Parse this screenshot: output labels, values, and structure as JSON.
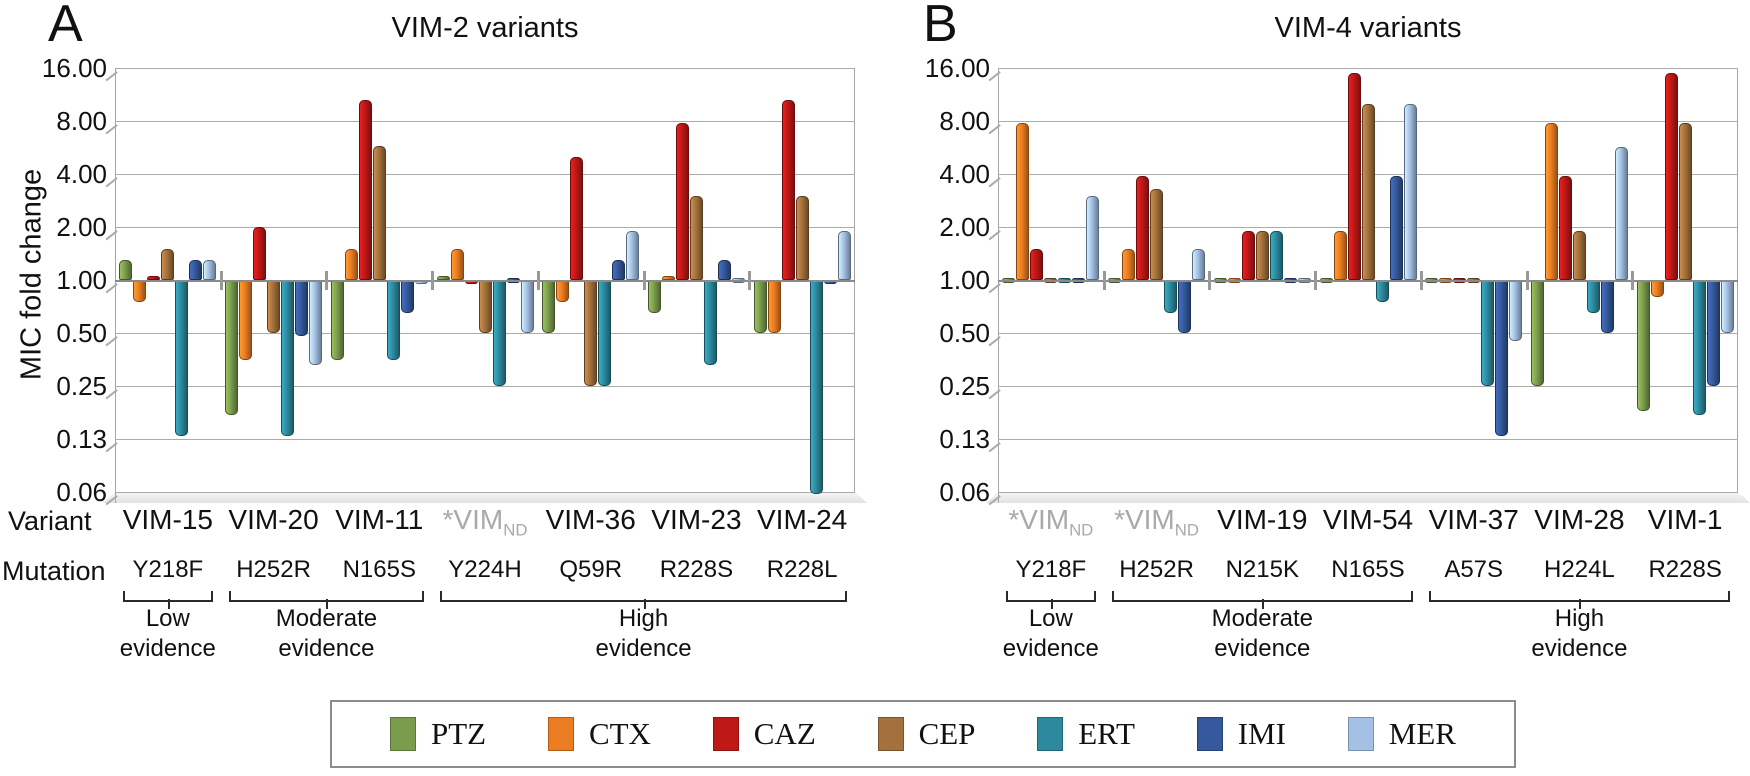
{
  "chart_data": [
    {
      "type": "bar",
      "panel_letter": "A",
      "title": "VIM-2 variants",
      "ylabel": "MIC fold change",
      "yscale": "log2",
      "ylim": [
        0.06,
        16
      ],
      "grid": true,
      "y_tick_labels": [
        "16.00",
        "8.00",
        "4.00",
        "2.00",
        "1.00",
        "0.50",
        "0.25",
        "0.13",
        "0.06"
      ],
      "axis_row_labels": {
        "variant": "Variant",
        "mutation": "Mutation"
      },
      "categories": [
        {
          "variant": "VIM-15",
          "sub": "",
          "nd": false,
          "mutation": "Y218F"
        },
        {
          "variant": "VIM-20",
          "sub": "",
          "nd": false,
          "mutation": "H252R"
        },
        {
          "variant": "VIM-11",
          "sub": "",
          "nd": false,
          "mutation": "N165S"
        },
        {
          "variant": "*VIM",
          "sub": "ND",
          "nd": true,
          "mutation": "Y224H"
        },
        {
          "variant": "VIM-36",
          "sub": "",
          "nd": false,
          "mutation": "Q59R"
        },
        {
          "variant": "VIM-23",
          "sub": "",
          "nd": false,
          "mutation": "R228S"
        },
        {
          "variant": "VIM-24",
          "sub": "",
          "nd": false,
          "mutation": "R228L"
        }
      ],
      "series": [
        {
          "name": "PTZ",
          "values": [
            1.3,
            0.17,
            0.35,
            1.05,
            0.5,
            0.65,
            0.5
          ]
        },
        {
          "name": "CTX",
          "values": [
            0.75,
            0.35,
            1.5,
            1.5,
            0.75,
            1.05,
            0.5
          ]
        },
        {
          "name": "CAZ",
          "values": [
            1.05,
            2.0,
            10.5,
            0.95,
            5.0,
            7.8,
            10.5
          ]
        },
        {
          "name": "CEP",
          "values": [
            1.5,
            0.5,
            5.8,
            0.5,
            0.25,
            3.0,
            3.0
          ]
        },
        {
          "name": "ERT",
          "values": [
            0.13,
            0.13,
            0.35,
            0.25,
            0.25,
            0.33,
            0.06
          ]
        },
        {
          "name": "IMI",
          "values": [
            1.3,
            0.48,
            0.65,
            0.97,
            1.3,
            1.3,
            0.95
          ]
        },
        {
          "name": "MER",
          "values": [
            1.3,
            0.33,
            0.95,
            0.5,
            1.9,
            0.97,
            1.9
          ]
        }
      ],
      "evidence_brackets": [
        {
          "label": [
            "Low",
            "evidence"
          ],
          "from": 0,
          "to": 0
        },
        {
          "label": [
            "Moderate",
            "evidence"
          ],
          "from": 1,
          "to": 2
        },
        {
          "label": [
            "High",
            "evidence"
          ],
          "from": 3,
          "to": 6
        }
      ]
    },
    {
      "type": "bar",
      "panel_letter": "B",
      "title": "VIM-4 variants",
      "yscale": "log2",
      "ylim": [
        0.06,
        16
      ],
      "grid": true,
      "y_tick_labels": [
        "16.00",
        "8.00",
        "4.00",
        "2.00",
        "1.00",
        "0.50",
        "0.25",
        "0.13",
        "0.06"
      ],
      "categories": [
        {
          "variant": "*VIM",
          "sub": "ND",
          "nd": true,
          "mutation": "Y218F"
        },
        {
          "variant": "*VIM",
          "sub": "ND",
          "nd": true,
          "mutation": "H252R"
        },
        {
          "variant": "VIM-19",
          "sub": "",
          "nd": false,
          "mutation": "N215K"
        },
        {
          "variant": "VIM-54",
          "sub": "",
          "nd": false,
          "mutation": "N165S"
        },
        {
          "variant": "VIM-37",
          "sub": "",
          "nd": false,
          "mutation": "A57S"
        },
        {
          "variant": "VIM-28",
          "sub": "",
          "nd": false,
          "mutation": "H224L"
        },
        {
          "variant": "VIM-1",
          "sub": "",
          "nd": false,
          "mutation": "R228S"
        }
      ],
      "series": [
        {
          "name": "PTZ",
          "values": [
            1.0,
            1.0,
            1.0,
            1.0,
            1.0,
            0.25,
            0.18
          ]
        },
        {
          "name": "CTX",
          "values": [
            7.8,
            1.5,
            1.0,
            1.9,
            1.0,
            7.8,
            0.8
          ]
        },
        {
          "name": "CAZ",
          "values": [
            1.5,
            3.9,
            1.9,
            15.0,
            1.0,
            3.9,
            15.0
          ]
        },
        {
          "name": "CEP",
          "values": [
            1.0,
            3.3,
            1.9,
            10.0,
            1.0,
            1.9,
            7.8
          ]
        },
        {
          "name": "ERT",
          "values": [
            1.0,
            0.65,
            1.9,
            0.75,
            0.25,
            0.65,
            0.17
          ]
        },
        {
          "name": "IMI",
          "values": [
            1.0,
            0.5,
            1.0,
            3.9,
            0.13,
            0.5,
            0.25
          ]
        },
        {
          "name": "MER",
          "values": [
            3.0,
            1.5,
            1.0,
            10.0,
            0.45,
            5.7,
            0.5
          ]
        }
      ],
      "evidence_brackets": [
        {
          "label": [
            "Low",
            "evidence"
          ],
          "from": 0,
          "to": 0
        },
        {
          "label": [
            "Moderate",
            "evidence"
          ],
          "from": 1,
          "to": 3
        },
        {
          "label": [
            "High",
            "evidence"
          ],
          "from": 4,
          "to": 6
        }
      ]
    }
  ],
  "legend": {
    "items": [
      {
        "label": "PTZ",
        "color": "#7B9C4D"
      },
      {
        "label": "CTX",
        "color": "#EC7D23"
      },
      {
        "label": "CAZ",
        "color": "#BE1817"
      },
      {
        "label": "CEP",
        "color": "#A4713C"
      },
      {
        "label": "ERT",
        "color": "#2D8A9E"
      },
      {
        "label": "IMI",
        "color": "#35599C"
      },
      {
        "label": "MER",
        "color": "#A4C0E4"
      }
    ]
  }
}
